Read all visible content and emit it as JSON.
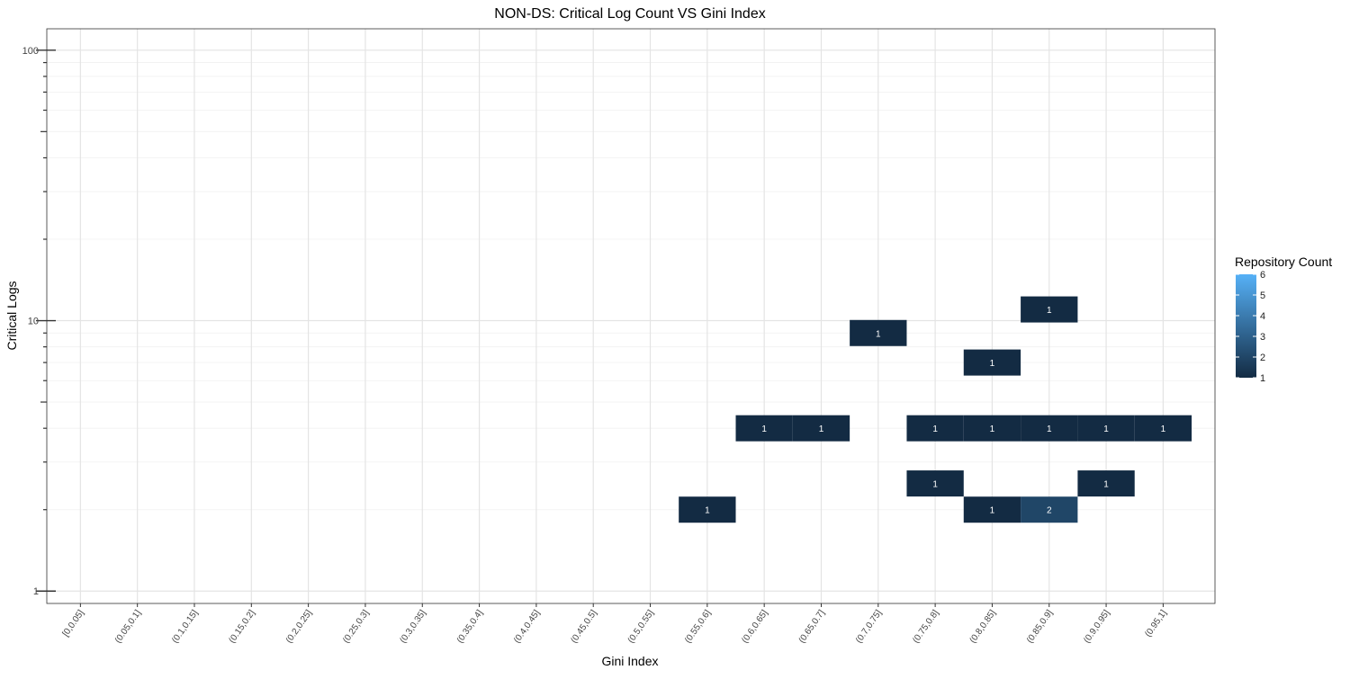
{
  "chart_data": {
    "type": "heatmap",
    "title": "NON-DS: Critical Log Count VS Gini Index",
    "xlabel": "Gini Index",
    "ylabel": "Critical Logs",
    "y_scale": "log10",
    "ylim": [
      0.9,
      120
    ],
    "y_ticks": [
      {
        "value": 1,
        "label": "1"
      },
      {
        "value": 10,
        "label": "10"
      },
      {
        "value": 100,
        "label": "100"
      }
    ],
    "x_categories": [
      "[0,0.05]",
      "(0.05,0.1]",
      "(0.1,0.15]",
      "(0.15,0.2]",
      "(0.2,0.25]",
      "(0.25,0.3]",
      "(0.3,0.35]",
      "(0.35,0.4]",
      "(0.4,0.45]",
      "(0.45,0.5]",
      "(0.5,0.55]",
      "(0.55,0.6]",
      "(0.6,0.65]",
      "(0.65,0.7]",
      "(0.7,0.75]",
      "(0.75,0.8]",
      "(0.8,0.85]",
      "(0.85,0.9]",
      "(0.9,0.95]",
      "(0.95,1]"
    ],
    "cells": [
      {
        "x": "(0.55,0.6]",
        "y": 2,
        "count": 1
      },
      {
        "x": "(0.6,0.65]",
        "y": 4,
        "count": 1
      },
      {
        "x": "(0.65,0.7]",
        "y": 4,
        "count": 1
      },
      {
        "x": "(0.7,0.75]",
        "y": 9,
        "count": 1
      },
      {
        "x": "(0.75,0.8]",
        "y": 4,
        "count": 1
      },
      {
        "x": "(0.75,0.8]",
        "y": 2.5,
        "count": 1
      },
      {
        "x": "(0.8,0.85]",
        "y": 7,
        "count": 1
      },
      {
        "x": "(0.8,0.85]",
        "y": 4,
        "count": 1
      },
      {
        "x": "(0.8,0.85]",
        "y": 2,
        "count": 1
      },
      {
        "x": "(0.85,0.9]",
        "y": 11,
        "count": 1
      },
      {
        "x": "(0.85,0.9]",
        "y": 4,
        "count": 1
      },
      {
        "x": "(0.85,0.9]",
        "y": 2,
        "count": 2
      },
      {
        "x": "(0.9,0.95]",
        "y": 4,
        "count": 1
      },
      {
        "x": "(0.9,0.95]",
        "y": 2.5,
        "count": 1
      },
      {
        "x": "(0.95,1]",
        "y": 4,
        "count": 1
      }
    ],
    "legend": {
      "title": "Repository Count",
      "placement": "right",
      "min": 1,
      "max": 6,
      "ticks": [
        "1",
        "2",
        "3",
        "4",
        "5",
        "6"
      ],
      "color_low": "#132B43",
      "color_high": "#56B1F7"
    },
    "grid": true
  }
}
